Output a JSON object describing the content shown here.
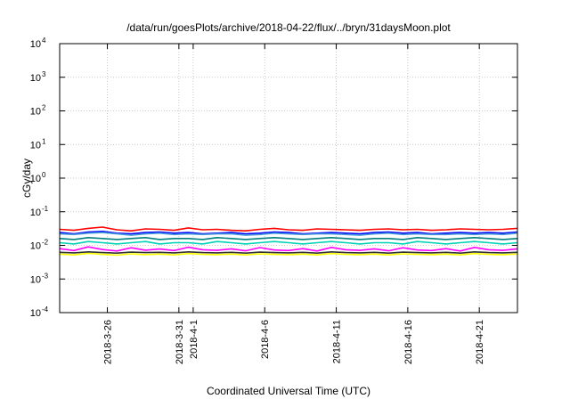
{
  "chart_data": {
    "type": "line",
    "title": "/data/run/goesPlots/archive/2018-04-22/flux/../bryn/31daysMoon.plot",
    "xlabel": "Coordinated Universal Time (UTC)",
    "ylabel": "cGy/day",
    "yscale": "log",
    "ylim": [
      0.0001,
      10000
    ],
    "xlim": [
      "2018-03-22T16:00",
      "2018-04-23T16:00"
    ],
    "grid": true,
    "legend": "none",
    "yticks": [
      {
        "value": 0.0001,
        "base": "10",
        "exp": "-4"
      },
      {
        "value": 0.001,
        "base": "10",
        "exp": "-3"
      },
      {
        "value": 0.01,
        "base": "10",
        "exp": "-2"
      },
      {
        "value": 0.1,
        "base": "10",
        "exp": "-1"
      },
      {
        "value": 1,
        "base": "10",
        "exp": "0"
      },
      {
        "value": 10,
        "base": "10",
        "exp": "1"
      },
      {
        "value": 100,
        "base": "10",
        "exp": "2"
      },
      {
        "value": 1000,
        "base": "10",
        "exp": "3"
      },
      {
        "value": 10000,
        "base": "10",
        "exp": "4"
      }
    ],
    "xticks": [
      {
        "value": "2018-03-26T00:00",
        "label": "2018-3-26"
      },
      {
        "value": "2018-03-31T00:00",
        "label": "2018-3-31"
      },
      {
        "value": "2018-04-01T00:00",
        "label": "2018-4-1"
      },
      {
        "value": "2018-04-06T00:00",
        "label": "2018-4-6"
      },
      {
        "value": "2018-04-11T00:00",
        "label": "2018-4-11"
      },
      {
        "value": "2018-04-16T00:00",
        "label": "2018-4-16"
      },
      {
        "value": "2018-04-21T00:00",
        "label": "2018-4-21"
      }
    ],
    "series": [
      {
        "color": "#ff0000",
        "values": [
          0.03,
          0.028,
          0.032,
          0.035,
          0.029,
          0.027,
          0.031,
          0.03,
          0.028,
          0.033,
          0.029,
          0.03,
          0.028,
          0.027,
          0.03,
          0.032,
          0.029,
          0.028,
          0.031,
          0.03,
          0.029,
          0.028,
          0.03,
          0.031,
          0.029,
          0.03,
          0.028,
          0.029,
          0.031,
          0.03,
          0.029,
          0.03,
          0.032
        ]
      },
      {
        "color": "#0000ff",
        "values": [
          0.024,
          0.022,
          0.025,
          0.026,
          0.023,
          0.022,
          0.024,
          0.025,
          0.023,
          0.024,
          0.022,
          0.023,
          0.024,
          0.022,
          0.023,
          0.025,
          0.024,
          0.022,
          0.023,
          0.024,
          0.023,
          0.022,
          0.024,
          0.025,
          0.023,
          0.024,
          0.022,
          0.023,
          0.024,
          0.023,
          0.024,
          0.023,
          0.025
        ]
      },
      {
        "color": "#4a9bd9",
        "values": [
          0.022,
          0.021,
          0.023,
          0.024,
          0.022,
          0.02,
          0.022,
          0.023,
          0.021,
          0.022,
          0.021,
          0.022,
          0.022,
          0.02,
          0.021,
          0.023,
          0.022,
          0.021,
          0.022,
          0.022,
          0.021,
          0.02,
          0.022,
          0.023,
          0.021,
          0.022,
          0.021,
          0.021,
          0.022,
          0.021,
          0.022,
          0.021,
          0.023
        ]
      },
      {
        "color": "#008080",
        "values": [
          0.016,
          0.015,
          0.017,
          0.016,
          0.015,
          0.016,
          0.017,
          0.015,
          0.016,
          0.016,
          0.015,
          0.017,
          0.016,
          0.015,
          0.016,
          0.017,
          0.016,
          0.015,
          0.016,
          0.017,
          0.016,
          0.015,
          0.016,
          0.016,
          0.015,
          0.017,
          0.016,
          0.015,
          0.016,
          0.017,
          0.016,
          0.015,
          0.016
        ]
      },
      {
        "color": "#00d4b4",
        "values": [
          0.012,
          0.011,
          0.013,
          0.012,
          0.011,
          0.012,
          0.013,
          0.011,
          0.012,
          0.012,
          0.011,
          0.013,
          0.012,
          0.011,
          0.012,
          0.013,
          0.012,
          0.011,
          0.012,
          0.013,
          0.012,
          0.011,
          0.012,
          0.012,
          0.011,
          0.013,
          0.012,
          0.011,
          0.012,
          0.013,
          0.012,
          0.011,
          0.012
        ]
      },
      {
        "color": "#ffff00",
        "values": [
          0.0055,
          0.0052,
          0.0058,
          0.0054,
          0.0051,
          0.0056,
          0.0053,
          0.0055,
          0.0052,
          0.0057,
          0.0054,
          0.0053,
          0.0055,
          0.0052,
          0.0056,
          0.0054,
          0.0053,
          0.0055,
          0.0052,
          0.0057,
          0.0054,
          0.0053,
          0.0055,
          0.0052,
          0.0056,
          0.0054,
          0.0053,
          0.0055,
          0.0052,
          0.0057,
          0.0054,
          0.0053,
          0.0055
        ]
      },
      {
        "color": "#333333",
        "values": [
          0.0062,
          0.006,
          0.0064,
          0.0061,
          0.0059,
          0.0063,
          0.0061,
          0.0062,
          0.006,
          0.0064,
          0.0061,
          0.006,
          0.0062,
          0.0059,
          0.0063,
          0.0061,
          0.006,
          0.0062,
          0.0059,
          0.0064,
          0.0061,
          0.006,
          0.0062,
          0.0059,
          0.0063,
          0.0061,
          0.006,
          0.0062,
          0.0059,
          0.0064,
          0.0061,
          0.006,
          0.0062
        ]
      },
      {
        "color": "#ff00ff",
        "values": [
          0.008,
          0.007,
          0.009,
          0.0075,
          0.0068,
          0.0085,
          0.0072,
          0.0078,
          0.007,
          0.0088,
          0.0074,
          0.0071,
          0.0079,
          0.0069,
          0.0086,
          0.0073,
          0.007,
          0.008,
          0.0068,
          0.0087,
          0.0074,
          0.0071,
          0.0079,
          0.0069,
          0.0085,
          0.0073,
          0.007,
          0.008,
          0.0068,
          0.0087,
          0.0074,
          0.0071,
          0.0079
        ]
      }
    ]
  }
}
